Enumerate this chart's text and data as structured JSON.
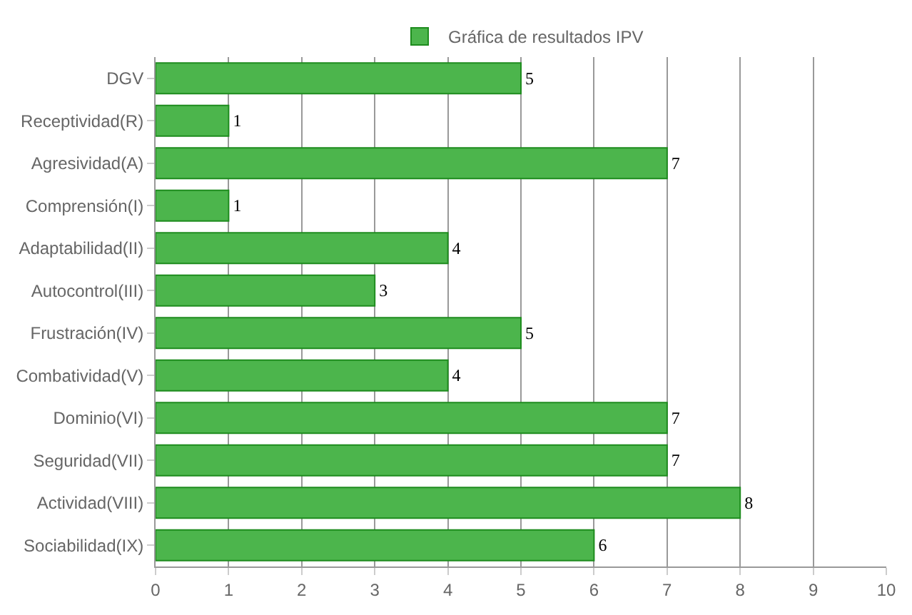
{
  "chart_data": {
    "type": "bar",
    "orientation": "horizontal",
    "categories": [
      "DGV",
      "Receptividad(R)",
      "Agresividad(A)",
      "Comprensión(I)",
      "Adaptabilidad(II)",
      "Autocontrol(III)",
      "Frustración(IV)",
      "Combatividad(V)",
      "Dominio(VI)",
      "Seguridad(VII)",
      "Actividad(VIII)",
      "Sociabilidad(IX)"
    ],
    "series": [
      {
        "name": "Gráfica de resultados IPV",
        "color": "#4cb54c",
        "values": [
          5,
          1,
          7,
          1,
          4,
          3,
          5,
          4,
          7,
          7,
          8,
          6
        ]
      }
    ],
    "xlim": [
      0,
      10
    ],
    "xticks": [
      0,
      1,
      2,
      3,
      4,
      5,
      6,
      7,
      8,
      9,
      10
    ],
    "data_labels": true,
    "grid": "x",
    "legend": "top"
  }
}
